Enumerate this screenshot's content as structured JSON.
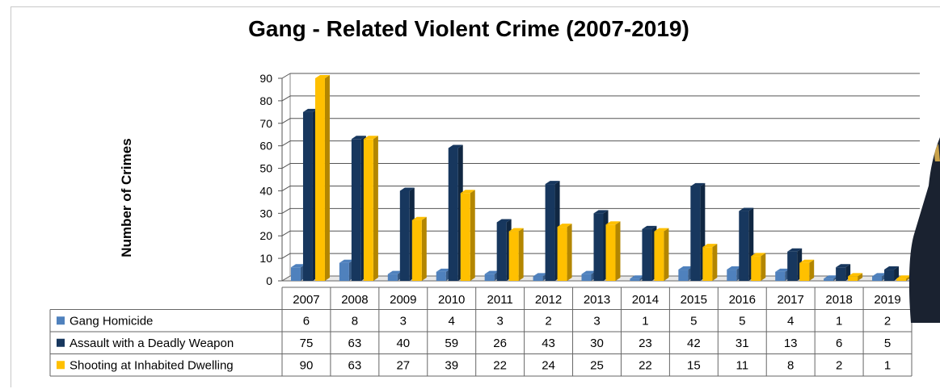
{
  "chart_data": {
    "type": "bar",
    "title": "Gang - Related Violent Crime (2007-2019)",
    "ylabel": "Number of Crimes",
    "xlabel": "",
    "ylim": [
      0,
      90
    ],
    "yticks": [
      0,
      10,
      20,
      30,
      40,
      50,
      60,
      70,
      80,
      90
    ],
    "grid": true,
    "legend": "data-table-left",
    "categories": [
      "2007",
      "2008",
      "2009",
      "2010",
      "2011",
      "2012",
      "2013",
      "2014",
      "2015",
      "2016",
      "2017",
      "2018",
      "2019"
    ],
    "series": [
      {
        "name": "Gang Homicide",
        "color": "#4f81bd",
        "values": [
          6,
          8,
          3,
          4,
          3,
          2,
          3,
          1,
          5,
          5,
          4,
          1,
          2
        ]
      },
      {
        "name": "Assault with a Deadly Weapon",
        "color": "#17375e",
        "values": [
          75,
          63,
          40,
          59,
          26,
          43,
          30,
          23,
          42,
          31,
          13,
          6,
          5
        ]
      },
      {
        "name": "Shooting at Inhabited Dwelling",
        "color": "#ffc000",
        "values": [
          90,
          63,
          27,
          39,
          22,
          24,
          25,
          22,
          15,
          11,
          8,
          2,
          1
        ]
      }
    ]
  }
}
